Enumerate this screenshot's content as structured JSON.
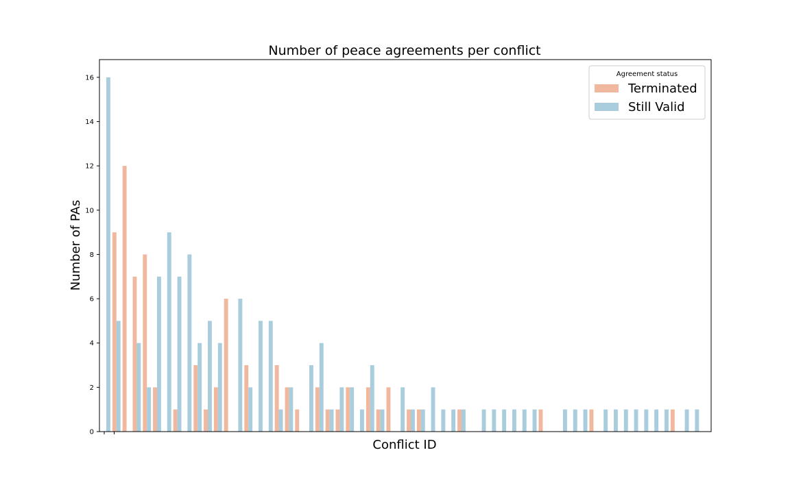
{
  "chart_data": {
    "type": "bar",
    "title": "Number of peace agreements per conflict",
    "xlabel": "Conflict ID",
    "ylabel": "Number of PAs",
    "ylim": [
      0,
      16.8
    ],
    "yticks": [
      0,
      2,
      4,
      6,
      8,
      10,
      12,
      14,
      16
    ],
    "grid": false,
    "legend": {
      "title": "Agreement status",
      "placement": "top-right"
    },
    "series": [
      {
        "name": "Terminated",
        "color": "#efb89f",
        "values": [
          0,
          9,
          12,
          7,
          8,
          2,
          0,
          1,
          0,
          3,
          1,
          2,
          6,
          0,
          3,
          0,
          0,
          3,
          2,
          1,
          0,
          2,
          1,
          1,
          2,
          0,
          2,
          1,
          2,
          0,
          1,
          1,
          0,
          0,
          0,
          1,
          0,
          0,
          0,
          0,
          0,
          0,
          0,
          1,
          0,
          0,
          0,
          0,
          1,
          0,
          0,
          0,
          0,
          0,
          0,
          0,
          1,
          0,
          0
        ]
      },
      {
        "name": "Still Valid",
        "color": "#a9cddd",
        "values": [
          16,
          5,
          0,
          4,
          2,
          7,
          9,
          7,
          8,
          4,
          5,
          4,
          0,
          6,
          2,
          5,
          5,
          1,
          2,
          0,
          3,
          4,
          1,
          2,
          2,
          1,
          3,
          1,
          0,
          2,
          1,
          1,
          2,
          1,
          1,
          1,
          0,
          1,
          1,
          1,
          1,
          1,
          1,
          0,
          0,
          1,
          1,
          1,
          0,
          1,
          1,
          1,
          1,
          1,
          1,
          1,
          0,
          1,
          1
        ]
      }
    ]
  }
}
